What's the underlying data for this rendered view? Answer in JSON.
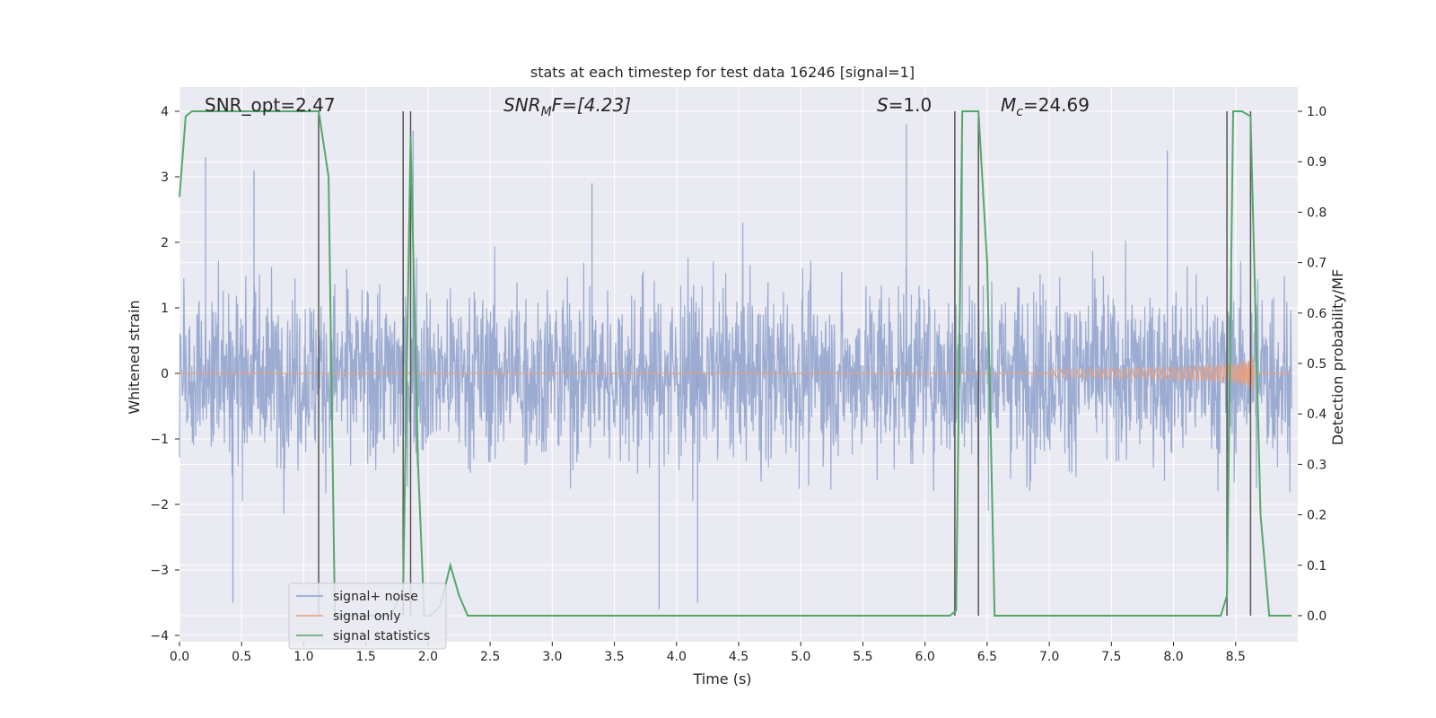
{
  "chart_data": {
    "type": "line",
    "title": "stats at each timestep for test data 16246 [signal=1]",
    "xlabel": "Time (s)",
    "ylabel_left": "Whitened strain",
    "ylabel_right": "Detection probability/MF",
    "xlim": [
      0.0,
      9.0
    ],
    "ylim_left": [
      -4.0,
      4.0
    ],
    "ylim_right": [
      0.0,
      1.0
    ],
    "xticks": [
      "0.0",
      "0.5",
      "1.0",
      "1.5",
      "2.0",
      "2.5",
      "3.0",
      "3.5",
      "4.0",
      "4.5",
      "5.0",
      "5.5",
      "6.0",
      "6.5",
      "7.0",
      "7.5",
      "8.0",
      "8.5"
    ],
    "yticks_left": [
      "−4",
      "−3",
      "−2",
      "−1",
      "0",
      "1",
      "2",
      "3",
      "4"
    ],
    "yticks_right": [
      "0.0",
      "0.1",
      "0.2",
      "0.3",
      "0.4",
      "0.5",
      "0.6",
      "0.7",
      "0.8",
      "0.9",
      "1.0"
    ],
    "grid": true,
    "legend_position": "lower-left",
    "annotations": {
      "snr_opt": "SNR_opt=2.47",
      "snr_mf_prefix": "SNR",
      "snr_mf_sub": "M",
      "snr_mf_suffix": "F=[4.23]",
      "s_prefix": "S",
      "s_suffix": "=1.0",
      "mc_prefix": "M",
      "mc_sub": "c",
      "mc_suffix": "=24.69"
    },
    "series": [
      {
        "name": "signal+ noise",
        "color": "#8da0cb",
        "description_range": [
          -3.7,
          3.9
        ],
        "peaks": [
          [
            0.21,
            3.3
          ],
          [
            0.6,
            3.1
          ],
          [
            1.88,
            3.7
          ],
          [
            3.32,
            2.9
          ],
          [
            5.85,
            3.8
          ],
          [
            6.3,
            3.5
          ],
          [
            7.95,
            3.4
          ],
          [
            3.86,
            -3.6
          ],
          [
            4.17,
            -3.5
          ],
          [
            0.43,
            -3.5
          ]
        ]
      },
      {
        "name": "signal only",
        "color": "#e8a07f",
        "chirp_start": 7.0,
        "chirp_end": 8.62,
        "max_amplitude": 0.4
      },
      {
        "name": "signal statistics",
        "color": "#55a868",
        "axis": "right",
        "x": [
          0.0,
          0.05,
          0.1,
          0.2,
          0.3,
          0.5,
          0.8,
          1.0,
          1.12,
          1.2,
          1.25,
          1.3,
          1.5,
          1.7,
          1.8,
          1.86,
          1.92,
          1.97,
          2.02,
          2.1,
          2.18,
          2.25,
          2.32,
          3.0,
          4.0,
          5.0,
          6.0,
          6.2,
          6.25,
          6.3,
          6.4,
          6.43,
          6.5,
          6.56,
          7.0,
          8.0,
          8.38,
          8.43,
          8.48,
          8.55,
          8.62,
          8.7,
          8.77,
          8.95
        ],
        "y": [
          0.83,
          0.99,
          1.0,
          1.0,
          1.0,
          1.0,
          1.0,
          1.0,
          1.0,
          0.87,
          0.0,
          0.0,
          0.0,
          0.0,
          0.05,
          0.95,
          0.3,
          0.0,
          0.0,
          0.02,
          0.1,
          0.04,
          0.0,
          0.0,
          0.0,
          0.0,
          0.0,
          0.0,
          0.01,
          1.0,
          1.0,
          1.0,
          0.7,
          0.0,
          0.0,
          0.0,
          0.0,
          0.04,
          1.0,
          1.0,
          0.99,
          0.2,
          0.0,
          0.0
        ]
      }
    ],
    "vertical_lines": [
      1.12,
      1.8,
      1.86,
      6.24,
      6.43,
      8.43,
      8.62
    ]
  }
}
